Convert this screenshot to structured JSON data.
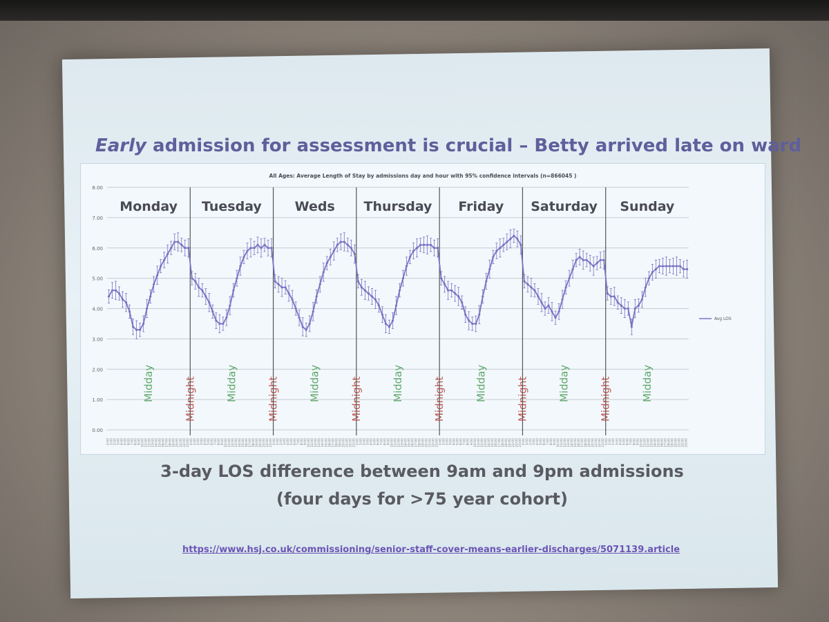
{
  "slide": {
    "title_em": "Early",
    "title_rest": " admission for assessment is crucial – Betty arrived late on ward",
    "caption_line1": "3-day LOS difference between 9am and 9pm admissions",
    "caption_line2": "(four days for >75 year cohort)",
    "url": "https://www.hsj.co.uk/commissioning/senior-staff-cover-means-earlier-discharges/5071139.article"
  },
  "chart_data": {
    "type": "line",
    "title": "All Ages: Average Length of Stay by admissions day and hour with 95% confidence intervals (n=866045 )",
    "legend": "Avg LOS",
    "legend_position": "right",
    "ylim": [
      0,
      8
    ],
    "yticks": [
      "0.00",
      "1.00",
      "2.00",
      "3.00",
      "4.00",
      "5.00",
      "6.00",
      "7.00",
      "8.00"
    ],
    "grid": true,
    "days": [
      "Monday",
      "Tuesday",
      "Weds",
      "Thursday",
      "Friday",
      "Saturday",
      "Sunday"
    ],
    "midday_label": "Midday",
    "midnight_label": "Midnight",
    "series": [
      {
        "name": "Avg LOS",
        "color": "#7b72c4",
        "values": [
          [
            4.4,
            4.6,
            4.6,
            4.5,
            4.3,
            4.2,
            3.9,
            3.4,
            3.3,
            3.3,
            3.5,
            4.0,
            4.4,
            4.8,
            5.1,
            5.4,
            5.6,
            5.8,
            6.0,
            6.2,
            6.2,
            6.1,
            6.0,
            6.0
          ],
          [
            5.0,
            4.9,
            4.7,
            4.6,
            4.4,
            4.2,
            3.9,
            3.6,
            3.5,
            3.5,
            3.7,
            4.1,
            4.6,
            5.0,
            5.4,
            5.7,
            5.9,
            6.0,
            6.0,
            6.1,
            6.0,
            6.1,
            6.0,
            6.0
          ],
          [
            4.9,
            4.8,
            4.7,
            4.7,
            4.5,
            4.3,
            4.0,
            3.7,
            3.4,
            3.3,
            3.5,
            3.9,
            4.4,
            4.8,
            5.2,
            5.5,
            5.7,
            5.9,
            6.1,
            6.2,
            6.2,
            6.1,
            6.0,
            5.8
          ],
          [
            4.9,
            4.7,
            4.6,
            4.5,
            4.4,
            4.3,
            4.1,
            3.8,
            3.5,
            3.4,
            3.6,
            4.1,
            4.6,
            5.0,
            5.4,
            5.7,
            5.9,
            6.0,
            6.1,
            6.1,
            6.1,
            6.1,
            6.0,
            6.0
          ],
          [
            5.0,
            4.8,
            4.6,
            4.6,
            4.5,
            4.4,
            4.2,
            3.8,
            3.6,
            3.5,
            3.5,
            3.8,
            4.4,
            4.9,
            5.3,
            5.7,
            5.9,
            6.0,
            6.1,
            6.2,
            6.3,
            6.4,
            6.3,
            6.1
          ],
          [
            4.9,
            4.8,
            4.7,
            4.6,
            4.4,
            4.2,
            4.0,
            4.1,
            3.9,
            3.7,
            3.9,
            4.3,
            4.7,
            5.0,
            5.3,
            5.6,
            5.7,
            5.6,
            5.6,
            5.5,
            5.4,
            5.5,
            5.6,
            5.6
          ],
          [
            4.5,
            4.4,
            4.4,
            4.2,
            4.1,
            4.0,
            4.0,
            3.4,
            4.0,
            4.1,
            4.3,
            4.7,
            5.0,
            5.2,
            5.3,
            5.4,
            5.4,
            5.4,
            5.4,
            5.4,
            5.4,
            5.4,
            5.3,
            5.3
          ]
        ]
      }
    ]
  }
}
